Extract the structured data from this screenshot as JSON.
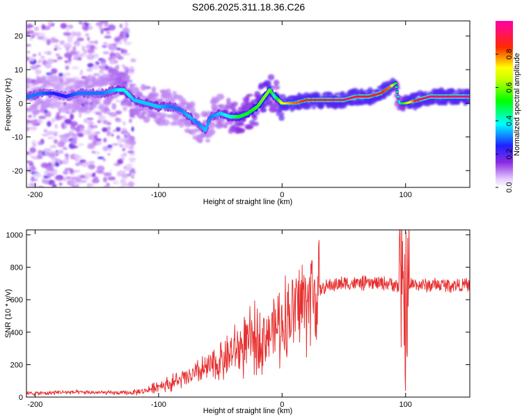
{
  "title": "S206.2025.311.18.36.C26",
  "chart_data": [
    {
      "type": "heatmap",
      "xlabel": "Height of straight line (km)",
      "ylabel": "Frequency (Hz)",
      "xlim": [
        -207,
        152
      ],
      "ylim": [
        -25,
        24.5
      ],
      "xticks": [
        -200,
        -100,
        0,
        100
      ],
      "yticks": [
        -20,
        -10,
        0,
        10,
        20
      ],
      "xtick_labels": [
        "-200",
        "-100",
        "0",
        "100"
      ],
      "ytick_labels": [
        "-20",
        "-10",
        "0",
        "10",
        "20"
      ],
      "colorbar": {
        "label": "Normalized spectral amplitude",
        "range": [
          0,
          1
        ],
        "ticks": [
          0.0,
          0.2,
          0.4,
          0.6,
          0.8
        ],
        "tick_labels": [
          "0.0",
          "0.2",
          "0.4",
          "0.6",
          "0.8"
        ]
      },
      "ridge": {
        "x": [
          -205,
          -195,
          -185,
          -175,
          -165,
          -155,
          -145,
          -135,
          -128,
          -120,
          -110,
          -100,
          -90,
          -82,
          -75,
          -68,
          -62,
          -58,
          -50,
          -42,
          -35,
          -28,
          -20,
          -14,
          -10,
          -6,
          0,
          10,
          20,
          30,
          40,
          50,
          60,
          70,
          80,
          88,
          92,
          95,
          100,
          110,
          120,
          135,
          152
        ],
        "y": [
          2,
          3,
          3,
          2,
          3,
          3,
          3,
          4,
          4,
          1,
          0,
          -1,
          -1,
          -2,
          -4,
          -6,
          -8,
          -4,
          -3,
          -4,
          -4,
          -3,
          -1,
          2,
          4,
          2,
          0,
          0,
          1,
          1,
          1,
          1,
          2,
          2,
          3,
          5,
          6,
          0,
          0,
          1,
          2,
          2,
          2
        ],
        "amplitude": [
          0.3,
          0.3,
          0.25,
          0.25,
          0.3,
          0.3,
          0.3,
          0.35,
          0.4,
          0.35,
          0.35,
          0.35,
          0.3,
          0.3,
          0.35,
          0.3,
          0.35,
          0.3,
          0.35,
          0.4,
          0.5,
          0.5,
          0.55,
          0.6,
          0.6,
          0.4,
          0.7,
          0.8,
          0.85,
          0.9,
          0.92,
          0.95,
          0.9,
          0.9,
          0.85,
          0.8,
          0.5,
          0.4,
          0.6,
          0.9,
          0.95,
          0.95,
          0.95
        ]
      }
    },
    {
      "type": "line",
      "xlabel": "Height of straight line (km)",
      "ylabel": "SNR (10 * v/v)",
      "xlim": [
        -207,
        152
      ],
      "ylim": [
        0,
        1030
      ],
      "xticks": [
        -200,
        -100,
        0,
        100
      ],
      "yticks": [
        0,
        200,
        400,
        600,
        800,
        1000
      ],
      "xtick_labels": [
        "-200",
        "-100",
        "0",
        "100"
      ],
      "ytick_labels": [
        "0",
        "200",
        "400",
        "600",
        "800",
        "1000"
      ],
      "color": "#e83030",
      "series": [
        {
          "name": "SNR",
          "x": [
            -207,
            -190,
            -180,
            -170,
            -150,
            -130,
            -120,
            -110,
            -100,
            -90,
            -80,
            -70,
            -60,
            -50,
            -40,
            -30,
            -20,
            -10,
            0,
            10,
            20,
            30,
            40,
            50,
            60,
            70,
            80,
            90,
            95,
            98,
            100,
            102,
            105,
            110,
            120,
            130,
            140,
            152
          ],
          "y": [
            22,
            25,
            30,
            30,
            28,
            25,
            28,
            40,
            70,
            85,
            110,
            140,
            180,
            220,
            270,
            320,
            360,
            400,
            460,
            540,
            610,
            660,
            690,
            700,
            700,
            700,
            700,
            700,
            680,
            600,
            560,
            650,
            700,
            690,
            690,
            690,
            690,
            690
          ]
        }
      ]
    }
  ]
}
